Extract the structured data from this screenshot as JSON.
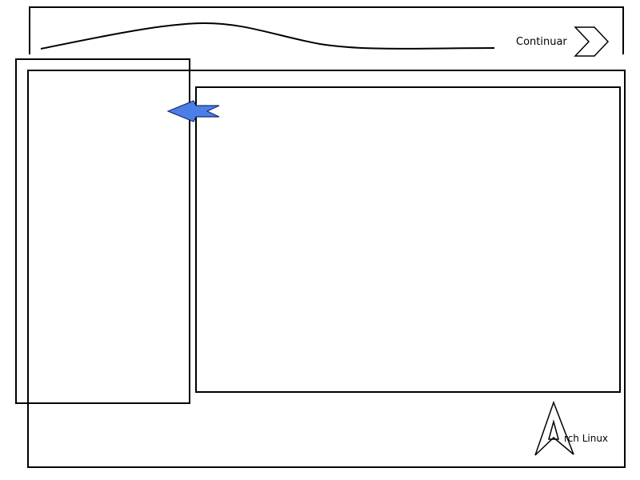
{
  "header": {
    "continue_label": "Continuar",
    "next_icon": "chevron-right-icon"
  },
  "sidebar": {
    "back_icon": "arrow-left-icon",
    "back_icon_color": "#4a7fe8"
  },
  "footer": {
    "logo_icon": "arch-linux-logo-icon",
    "logo_text": "rch Linux"
  },
  "colors": {
    "stroke": "#000000",
    "background": "#ffffff",
    "accent": "#4a7fe8"
  }
}
